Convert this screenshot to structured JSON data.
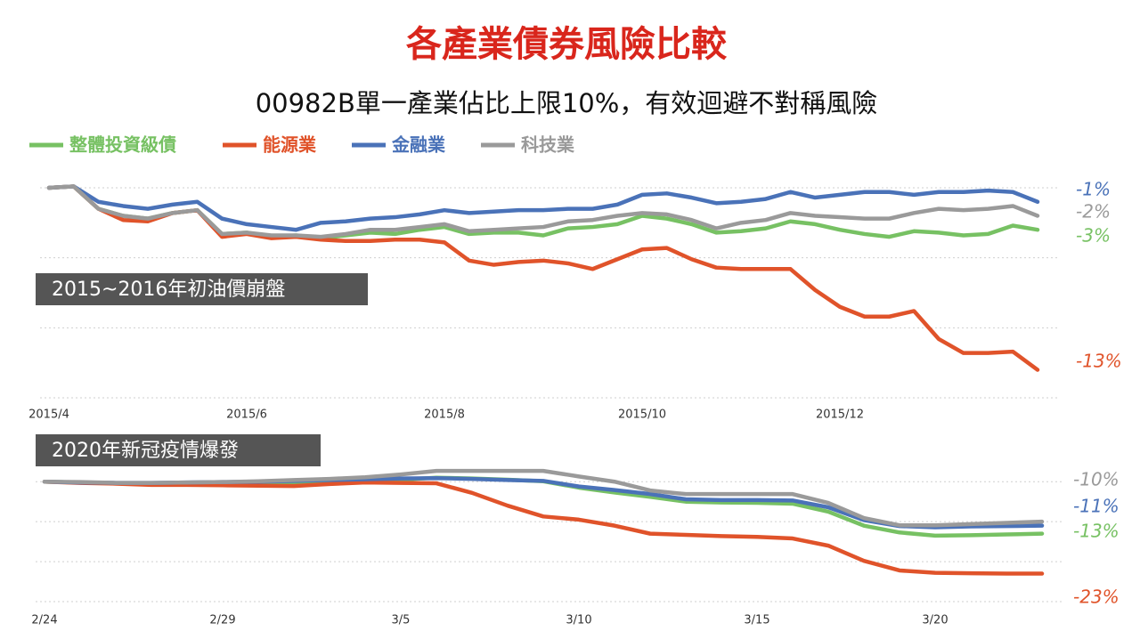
{
  "title": "各產業債券風險比較",
  "subtitle": "00982B單一產業佔比上限10%，有效迴避不對稱風險",
  "chart_data": [
    {
      "type": "line",
      "label": "2015~2016年初油價崩盤",
      "categories": [
        "2015/4",
        null,
        null,
        null,
        null,
        null,
        null,
        null,
        "2015/6",
        null,
        null,
        null,
        null,
        null,
        null,
        null,
        "2015/8",
        null,
        null,
        null,
        null,
        null,
        null,
        null,
        "2015/10",
        null,
        null,
        null,
        null,
        null,
        null,
        null,
        "2015/12",
        null,
        null,
        null,
        null,
        null,
        null,
        null,
        null
      ],
      "ylim": [
        -15,
        0.7
      ],
      "yticks": [
        0,
        -5,
        -10,
        -15
      ],
      "grid": true,
      "series": [
        {
          "name": "整體投資級債",
          "color": "#77c163",
          "end_label": "-3%",
          "values": [
            0,
            0.1,
            -1.5,
            -2.0,
            -2.2,
            -1.8,
            -1.6,
            -3.3,
            -3.2,
            -3.5,
            -3.4,
            -3.6,
            -3.4,
            -3.2,
            -3.3,
            -3.0,
            -2.8,
            -3.3,
            -3.2,
            -3.2,
            -3.4,
            -2.9,
            -2.8,
            -2.6,
            -2.0,
            -2.2,
            -2.6,
            -3.2,
            -3.1,
            -2.9,
            -2.4,
            -2.6,
            -3.0,
            -3.3,
            -3.5,
            -3.1,
            -3.2,
            -3.4,
            -3.3,
            -2.7,
            -3
          ]
        },
        {
          "name": "能源業",
          "color": "#e0532a",
          "end_label": "-13%",
          "values": [
            0,
            0.1,
            -1.5,
            -2.3,
            -2.4,
            -1.8,
            -1.6,
            -3.5,
            -3.3,
            -3.6,
            -3.5,
            -3.7,
            -3.8,
            -3.8,
            -3.7,
            -3.7,
            -3.9,
            -5.2,
            -5.5,
            -5.3,
            -5.2,
            -5.4,
            -5.8,
            -5.1,
            -4.4,
            -4.3,
            -5.1,
            -5.7,
            -5.8,
            -5.8,
            -5.8,
            -7.3,
            -8.5,
            -9.2,
            -9.2,
            -8.8,
            -10.8,
            -11.8,
            -11.8,
            -11.7,
            -13
          ]
        },
        {
          "name": "金融業",
          "color": "#4a72b8",
          "end_label": "-1%",
          "values": [
            0,
            0.1,
            -1.0,
            -1.3,
            -1.5,
            -1.2,
            -1.0,
            -2.2,
            -2.6,
            -2.8,
            -3.0,
            -2.5,
            -2.4,
            -2.2,
            -2.1,
            -1.9,
            -1.6,
            -1.8,
            -1.7,
            -1.6,
            -1.6,
            -1.5,
            -1.5,
            -1.2,
            -0.5,
            -0.4,
            -0.7,
            -1.1,
            -1.0,
            -0.8,
            -0.3,
            -0.7,
            -0.5,
            -0.3,
            -0.3,
            -0.5,
            -0.3,
            -0.3,
            -0.2,
            -0.3,
            -1
          ]
        },
        {
          "name": "科技業",
          "color": "#9a9a9a",
          "end_label": "-2%",
          "values": [
            0,
            0.1,
            -1.5,
            -2.0,
            -2.2,
            -1.8,
            -1.6,
            -3.3,
            -3.2,
            -3.4,
            -3.4,
            -3.5,
            -3.3,
            -3.0,
            -3.0,
            -2.8,
            -2.6,
            -3.1,
            -3.0,
            -2.9,
            -2.8,
            -2.4,
            -2.3,
            -2.0,
            -1.8,
            -1.9,
            -2.3,
            -2.9,
            -2.5,
            -2.3,
            -1.8,
            -2.0,
            -2.1,
            -2.2,
            -2.2,
            -1.8,
            -1.5,
            -1.6,
            -1.5,
            -1.3,
            -2
          ]
        }
      ]
    },
    {
      "type": "line",
      "label": "2020年新冠疫情爆發",
      "categories": [
        "2/24",
        null,
        null,
        null,
        null,
        "2/29",
        null,
        null,
        null,
        null,
        "3/5",
        null,
        null,
        null,
        null,
        "3/10",
        null,
        null,
        null,
        null,
        "3/15",
        null,
        null,
        null,
        null,
        "3/20",
        null,
        null,
        null
      ],
      "ylim": [
        -30,
        2.5
      ],
      "yticks": [
        0,
        -10,
        -20,
        -30
      ],
      "grid": true,
      "series": [
        {
          "color": "#77c163",
          "end_label": "-13%",
          "values": [
            0,
            -0.2,
            -0.4,
            -0.4,
            -0.3,
            -0.3,
            -0.3,
            -0.2,
            0.1,
            0.3,
            0.5,
            1.0,
            0.8,
            0.5,
            0.1,
            -1.5,
            -2.7,
            -3.8,
            -5.0,
            -5.2,
            -5.3,
            -5.5,
            -7.5,
            -11.0,
            -12.7,
            -13.5,
            -13.4,
            -13.2,
            -13
          ]
        },
        {
          "color": "#e0532a",
          "end_label": "-23%",
          "values": [
            0,
            -0.3,
            -0.5,
            -0.8,
            -0.8,
            -0.9,
            -1.0,
            -1.1,
            -0.6,
            -0.2,
            -0.3,
            -0.4,
            -2.8,
            -6.0,
            -8.7,
            -9.5,
            -11.0,
            -13.0,
            -13.3,
            -13.6,
            -13.8,
            -14.2,
            -16.0,
            -19.8,
            -22.2,
            -22.8,
            -22.9,
            -23.0,
            -23
          ]
        },
        {
          "color": "#4a72b8",
          "end_label": "-11%",
          "values": [
            0,
            -0.2,
            -0.3,
            -0.3,
            -0.2,
            -0.1,
            0,
            0.2,
            0.4,
            0.6,
            0.8,
            0.9,
            0.7,
            0.4,
            0.2,
            -1.2,
            -2.1,
            -3.1,
            -4.4,
            -4.6,
            -4.6,
            -4.7,
            -6.4,
            -9.6,
            -11.1,
            -11.4,
            -11.2,
            -11.1,
            -11
          ]
        },
        {
          "color": "#9a9a9a",
          "end_label": "-10%",
          "values": [
            0,
            -0.1,
            -0.3,
            -0.3,
            -0.2,
            -0.1,
            0.1,
            0.4,
            0.7,
            1.1,
            1.8,
            2.7,
            2.7,
            2.7,
            2.7,
            1.3,
            0,
            -2.2,
            -3.1,
            -3.1,
            -3.1,
            -3.1,
            -5.3,
            -9.1,
            -10.9,
            -10.9,
            -10.6,
            -10.3,
            -10
          ]
        }
      ]
    }
  ]
}
